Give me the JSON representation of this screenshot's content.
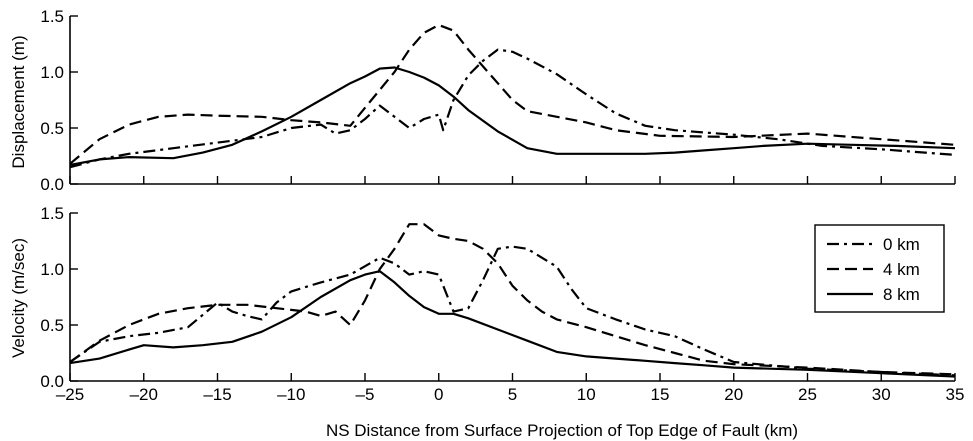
{
  "chart_data": [
    {
      "type": "line",
      "ylabel": "Displacement (m)",
      "xlim": [
        -25,
        35
      ],
      "ylim": [
        0,
        1.5
      ],
      "yticks": [
        "0.0",
        "0.5",
        "1.0",
        "1.5"
      ],
      "series": [
        {
          "name": "0 km",
          "dash": "dashdot",
          "points": [
            [
              -25,
              0.15
            ],
            [
              -23,
              0.22
            ],
            [
              -21,
              0.27
            ],
            [
              -18,
              0.32
            ],
            [
              -15,
              0.37
            ],
            [
              -12,
              0.42
            ],
            [
              -10,
              0.5
            ],
            [
              -8,
              0.53
            ],
            [
              -7,
              0.45
            ],
            [
              -6,
              0.48
            ],
            [
              -5,
              0.58
            ],
            [
              -4,
              0.7
            ],
            [
              -3,
              0.6
            ],
            [
              -2,
              0.5
            ],
            [
              -1,
              0.58
            ],
            [
              0,
              0.62
            ],
            [
              0.3,
              0.48
            ],
            [
              1,
              0.75
            ],
            [
              2,
              0.97
            ],
            [
              3,
              1.1
            ],
            [
              4,
              1.2
            ],
            [
              5,
              1.18
            ],
            [
              6,
              1.12
            ],
            [
              8,
              0.98
            ],
            [
              10,
              0.8
            ],
            [
              12,
              0.63
            ],
            [
              14,
              0.52
            ],
            [
              16,
              0.48
            ],
            [
              20,
              0.44
            ],
            [
              23,
              0.4
            ],
            [
              26,
              0.34
            ],
            [
              30,
              0.31
            ],
            [
              35,
              0.26
            ]
          ]
        },
        {
          "name": "4 km",
          "dash": "dashed",
          "points": [
            [
              -25,
              0.18
            ],
            [
              -23,
              0.4
            ],
            [
              -21,
              0.53
            ],
            [
              -19,
              0.6
            ],
            [
              -17,
              0.62
            ],
            [
              -15,
              0.61
            ],
            [
              -12,
              0.6
            ],
            [
              -10,
              0.57
            ],
            [
              -8,
              0.55
            ],
            [
              -6,
              0.52
            ],
            [
              -5,
              0.68
            ],
            [
              -3,
              1.0
            ],
            [
              -2,
              1.2
            ],
            [
              -1,
              1.35
            ],
            [
              0,
              1.42
            ],
            [
              1,
              1.37
            ],
            [
              2,
              1.2
            ],
            [
              3,
              1.05
            ],
            [
              4,
              0.9
            ],
            [
              5,
              0.75
            ],
            [
              6,
              0.65
            ],
            [
              8,
              0.6
            ],
            [
              10,
              0.55
            ],
            [
              12,
              0.48
            ],
            [
              15,
              0.43
            ],
            [
              20,
              0.42
            ],
            [
              25,
              0.45
            ],
            [
              30,
              0.4
            ],
            [
              35,
              0.35
            ]
          ]
        },
        {
          "name": "8 km",
          "dash": "solid",
          "points": [
            [
              -25,
              0.17
            ],
            [
              -23,
              0.22
            ],
            [
              -21,
              0.24
            ],
            [
              -18,
              0.23
            ],
            [
              -16,
              0.28
            ],
            [
              -14,
              0.35
            ],
            [
              -12,
              0.47
            ],
            [
              -10,
              0.6
            ],
            [
              -8,
              0.75
            ],
            [
              -6,
              0.9
            ],
            [
              -5,
              0.96
            ],
            [
              -4,
              1.03
            ],
            [
              -3,
              1.04
            ],
            [
              -2,
              1.0
            ],
            [
              -1,
              0.95
            ],
            [
              0,
              0.88
            ],
            [
              1,
              0.78
            ],
            [
              2,
              0.66
            ],
            [
              4,
              0.47
            ],
            [
              6,
              0.32
            ],
            [
              8,
              0.27
            ],
            [
              10,
              0.27
            ],
            [
              12,
              0.27
            ],
            [
              14,
              0.27
            ],
            [
              16,
              0.28
            ],
            [
              18,
              0.3
            ],
            [
              20,
              0.32
            ],
            [
              22,
              0.34
            ],
            [
              25,
              0.36
            ],
            [
              28,
              0.35
            ],
            [
              31,
              0.34
            ],
            [
              35,
              0.32
            ]
          ]
        }
      ]
    },
    {
      "type": "line",
      "ylabel": "Velocity (m/sec)",
      "xlabel": "NS Distance from Surface Projection of Top Edge of Fault (km)",
      "xlim": [
        -25,
        35
      ],
      "ylim": [
        0,
        1.5
      ],
      "yticks": [
        "0.0",
        "0.5",
        "1.0",
        "1.5"
      ],
      "xticks": [
        "-25",
        "-20",
        "-15",
        "-10",
        "-5",
        "0",
        "5",
        "10",
        "15",
        "20",
        "25",
        "30",
        "35"
      ],
      "legend": {
        "placement": "top-right",
        "entries": [
          "0 km",
          "4 km",
          "8 km"
        ]
      },
      "series": [
        {
          "name": "0 km",
          "dash": "dashdot",
          "points": [
            [
              -25,
              0.17
            ],
            [
              -23,
              0.35
            ],
            [
              -21,
              0.4
            ],
            [
              -19,
              0.43
            ],
            [
              -17,
              0.48
            ],
            [
              -15,
              0.7
            ],
            [
              -14,
              0.62
            ],
            [
              -13,
              0.58
            ],
            [
              -12,
              0.55
            ],
            [
              -11,
              0.7
            ],
            [
              -10,
              0.8
            ],
            [
              -8,
              0.88
            ],
            [
              -6,
              0.95
            ],
            [
              -4,
              1.1
            ],
            [
              -3,
              1.05
            ],
            [
              -2,
              0.95
            ],
            [
              -1,
              0.98
            ],
            [
              0,
              0.95
            ],
            [
              1,
              0.62
            ],
            [
              2,
              0.65
            ],
            [
              3,
              0.9
            ],
            [
              4,
              1.18
            ],
            [
              5,
              1.2
            ],
            [
              6,
              1.18
            ],
            [
              8,
              1.02
            ],
            [
              9,
              0.82
            ],
            [
              10,
              0.65
            ],
            [
              12,
              0.55
            ],
            [
              14,
              0.46
            ],
            [
              16,
              0.4
            ],
            [
              18,
              0.28
            ],
            [
              20,
              0.17
            ],
            [
              25,
              0.11
            ],
            [
              30,
              0.08
            ],
            [
              35,
              0.05
            ]
          ]
        },
        {
          "name": "4 km",
          "dash": "dashed",
          "points": [
            [
              -25,
              0.17
            ],
            [
              -23,
              0.36
            ],
            [
              -21,
              0.5
            ],
            [
              -19,
              0.6
            ],
            [
              -17,
              0.65
            ],
            [
              -15,
              0.68
            ],
            [
              -13,
              0.68
            ],
            [
              -11,
              0.65
            ],
            [
              -9,
              0.62
            ],
            [
              -8,
              0.58
            ],
            [
              -7,
              0.62
            ],
            [
              -6,
              0.5
            ],
            [
              -5,
              0.72
            ],
            [
              -4,
              1.0
            ],
            [
              -3,
              1.18
            ],
            [
              -2,
              1.4
            ],
            [
              -1,
              1.4
            ],
            [
              0,
              1.3
            ],
            [
              1,
              1.27
            ],
            [
              2,
              1.25
            ],
            [
              3,
              1.18
            ],
            [
              4,
              1.05
            ],
            [
              5,
              0.85
            ],
            [
              6,
              0.72
            ],
            [
              7,
              0.62
            ],
            [
              8,
              0.55
            ],
            [
              10,
              0.48
            ],
            [
              12,
              0.4
            ],
            [
              14,
              0.32
            ],
            [
              16,
              0.25
            ],
            [
              18,
              0.18
            ],
            [
              20,
              0.15
            ],
            [
              25,
              0.12
            ],
            [
              30,
              0.08
            ],
            [
              35,
              0.06
            ]
          ]
        },
        {
          "name": "8 km",
          "dash": "solid",
          "points": [
            [
              -25,
              0.16
            ],
            [
              -23,
              0.2
            ],
            [
              -21,
              0.28
            ],
            [
              -20,
              0.32
            ],
            [
              -18,
              0.3
            ],
            [
              -16,
              0.32
            ],
            [
              -14,
              0.35
            ],
            [
              -12,
              0.44
            ],
            [
              -10,
              0.57
            ],
            [
              -8,
              0.75
            ],
            [
              -6,
              0.9
            ],
            [
              -5,
              0.95
            ],
            [
              -4,
              0.98
            ],
            [
              -3,
              0.88
            ],
            [
              -2,
              0.76
            ],
            [
              -1,
              0.66
            ],
            [
              0,
              0.6
            ],
            [
              1,
              0.6
            ],
            [
              2,
              0.56
            ],
            [
              4,
              0.46
            ],
            [
              6,
              0.36
            ],
            [
              8,
              0.26
            ],
            [
              10,
              0.22
            ],
            [
              12,
              0.2
            ],
            [
              14,
              0.18
            ],
            [
              16,
              0.16
            ],
            [
              18,
              0.14
            ],
            [
              20,
              0.12
            ],
            [
              25,
              0.1
            ],
            [
              30,
              0.07
            ],
            [
              35,
              0.04
            ]
          ]
        }
      ]
    }
  ]
}
